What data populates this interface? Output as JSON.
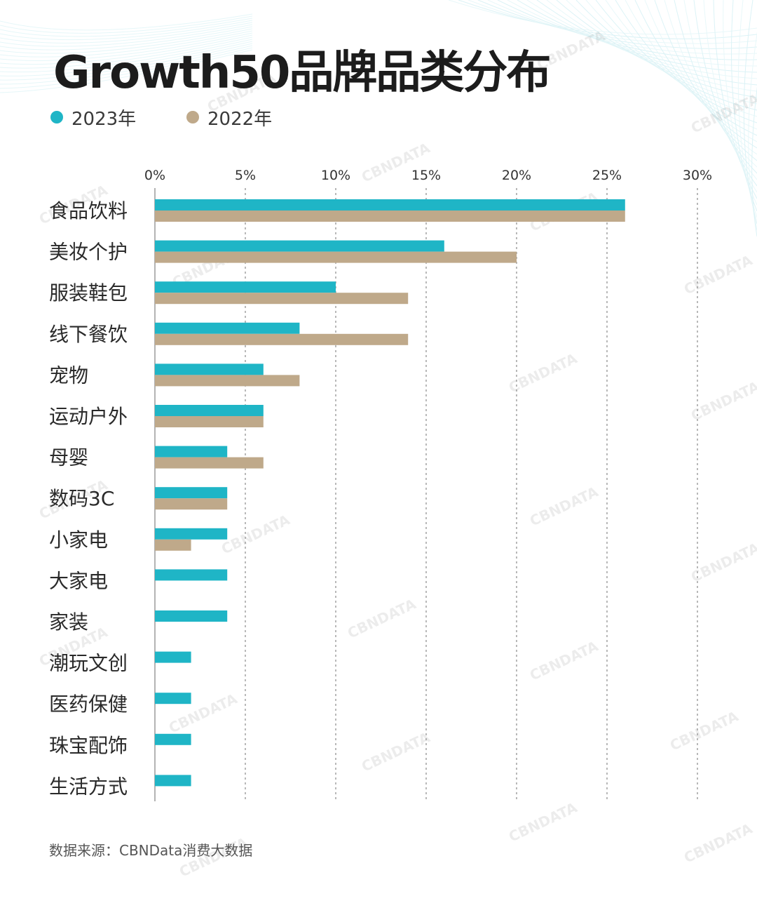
{
  "title": "Growth50品牌品类分布",
  "source": "数据来源：CBNData消费大数据",
  "watermark": "CBNDATA",
  "colors": {
    "series_2023": "#1fb5c6",
    "series_2022": "#bfa98a"
  },
  "chart_data": {
    "type": "bar",
    "orientation": "horizontal",
    "categories": [
      "食品饮料",
      "美妆个护",
      "服装鞋包",
      "线下餐饮",
      "宠物",
      "运动户外",
      "母婴",
      "数码3C",
      "小家电",
      "大家电",
      "家装",
      "潮玩文创",
      "医药保健",
      "珠宝配饰",
      "生活方式"
    ],
    "series": [
      {
        "name": "2023年",
        "values": [
          26,
          16,
          10,
          8,
          6,
          6,
          4,
          4,
          4,
          4,
          4,
          2,
          2,
          2,
          2
        ]
      },
      {
        "name": "2022年",
        "values": [
          26,
          20,
          14,
          14,
          8,
          6,
          6,
          4,
          2,
          0,
          0,
          0,
          0,
          0,
          0
        ]
      }
    ],
    "xlim": [
      0,
      30
    ],
    "xticks": [
      "0%",
      "5%",
      "10%",
      "15%",
      "20%",
      "25%",
      "30%"
    ],
    "grid": true,
    "legend": "top-left"
  }
}
